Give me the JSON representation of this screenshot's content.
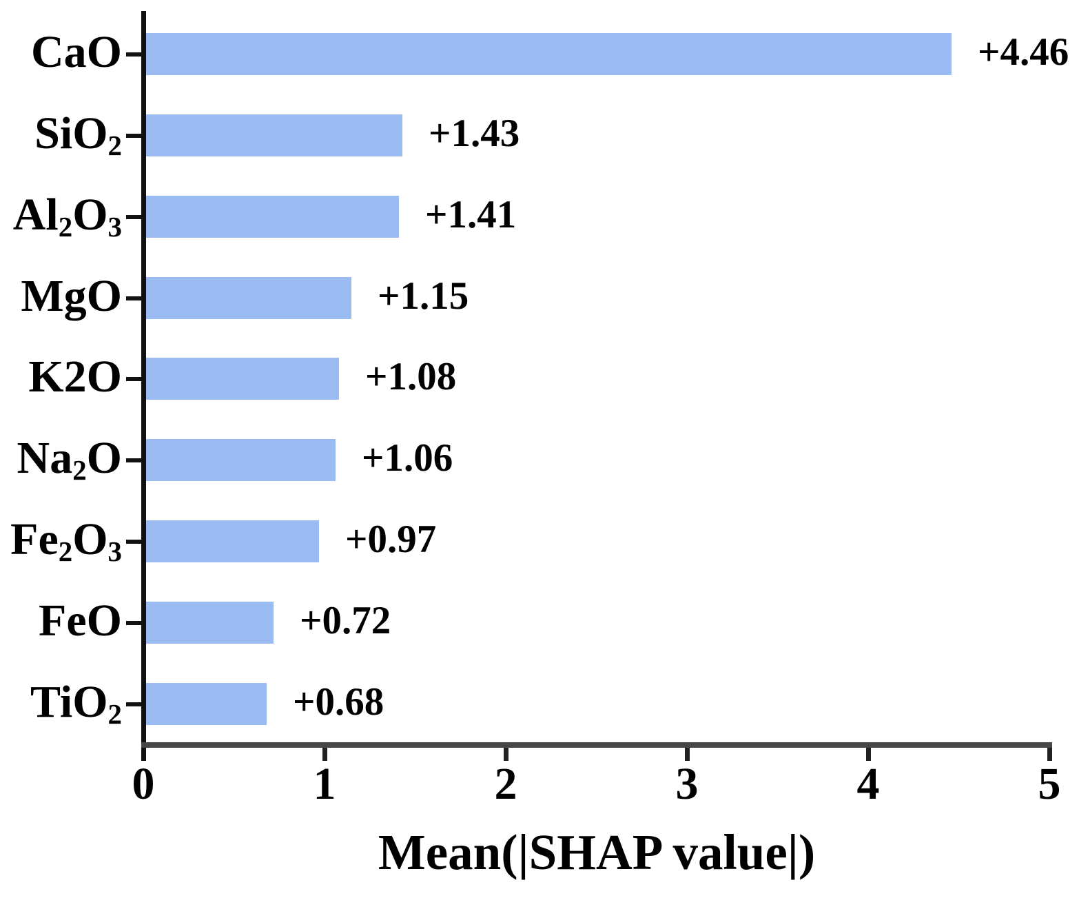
{
  "chart_data": {
    "type": "bar",
    "orientation": "horizontal",
    "title": "",
    "xlabel": "Mean(|SHAP value|)",
    "ylabel": "",
    "xlim": [
      0,
      5
    ],
    "x_ticks": [
      "0",
      "1",
      "2",
      "3",
      "4",
      "5"
    ],
    "grid": false,
    "legend": false,
    "bar_color": "#9bbbf3",
    "x_axis_color": "#474747",
    "y_axis_color": "#111111",
    "tick_color": "#222222",
    "text_color": "#000000",
    "categories": [
      "CaO",
      "SiO2",
      "Al2O3",
      "MgO",
      "K2O",
      "Na2O",
      "Fe2O3",
      "FeO",
      "TiO2"
    ],
    "category_parts": [
      [
        {
          "t": "CaO"
        }
      ],
      [
        {
          "t": "SiO"
        },
        {
          "t": "2",
          "sub": true
        }
      ],
      [
        {
          "t": "Al"
        },
        {
          "t": "2",
          "sub": true
        },
        {
          "t": "O"
        },
        {
          "t": "3",
          "sub": true
        }
      ],
      [
        {
          "t": "MgO"
        }
      ],
      [
        {
          "t": "K2O"
        }
      ],
      [
        {
          "t": "Na"
        },
        {
          "t": "2",
          "sub": true
        },
        {
          "t": "O"
        }
      ],
      [
        {
          "t": "Fe"
        },
        {
          "t": "2",
          "sub": true
        },
        {
          "t": "O"
        },
        {
          "t": "3",
          "sub": true
        }
      ],
      [
        {
          "t": "FeO"
        }
      ],
      [
        {
          "t": "TiO"
        },
        {
          "t": "2",
          "sub": true
        }
      ]
    ],
    "values": [
      4.46,
      1.43,
      1.41,
      1.15,
      1.08,
      1.06,
      0.97,
      0.72,
      0.68
    ],
    "value_labels": [
      "+4.46",
      "+1.43",
      "+1.41",
      "+1.15",
      "+1.08",
      "+1.06",
      "+0.97",
      "+0.72",
      "+0.68"
    ]
  }
}
